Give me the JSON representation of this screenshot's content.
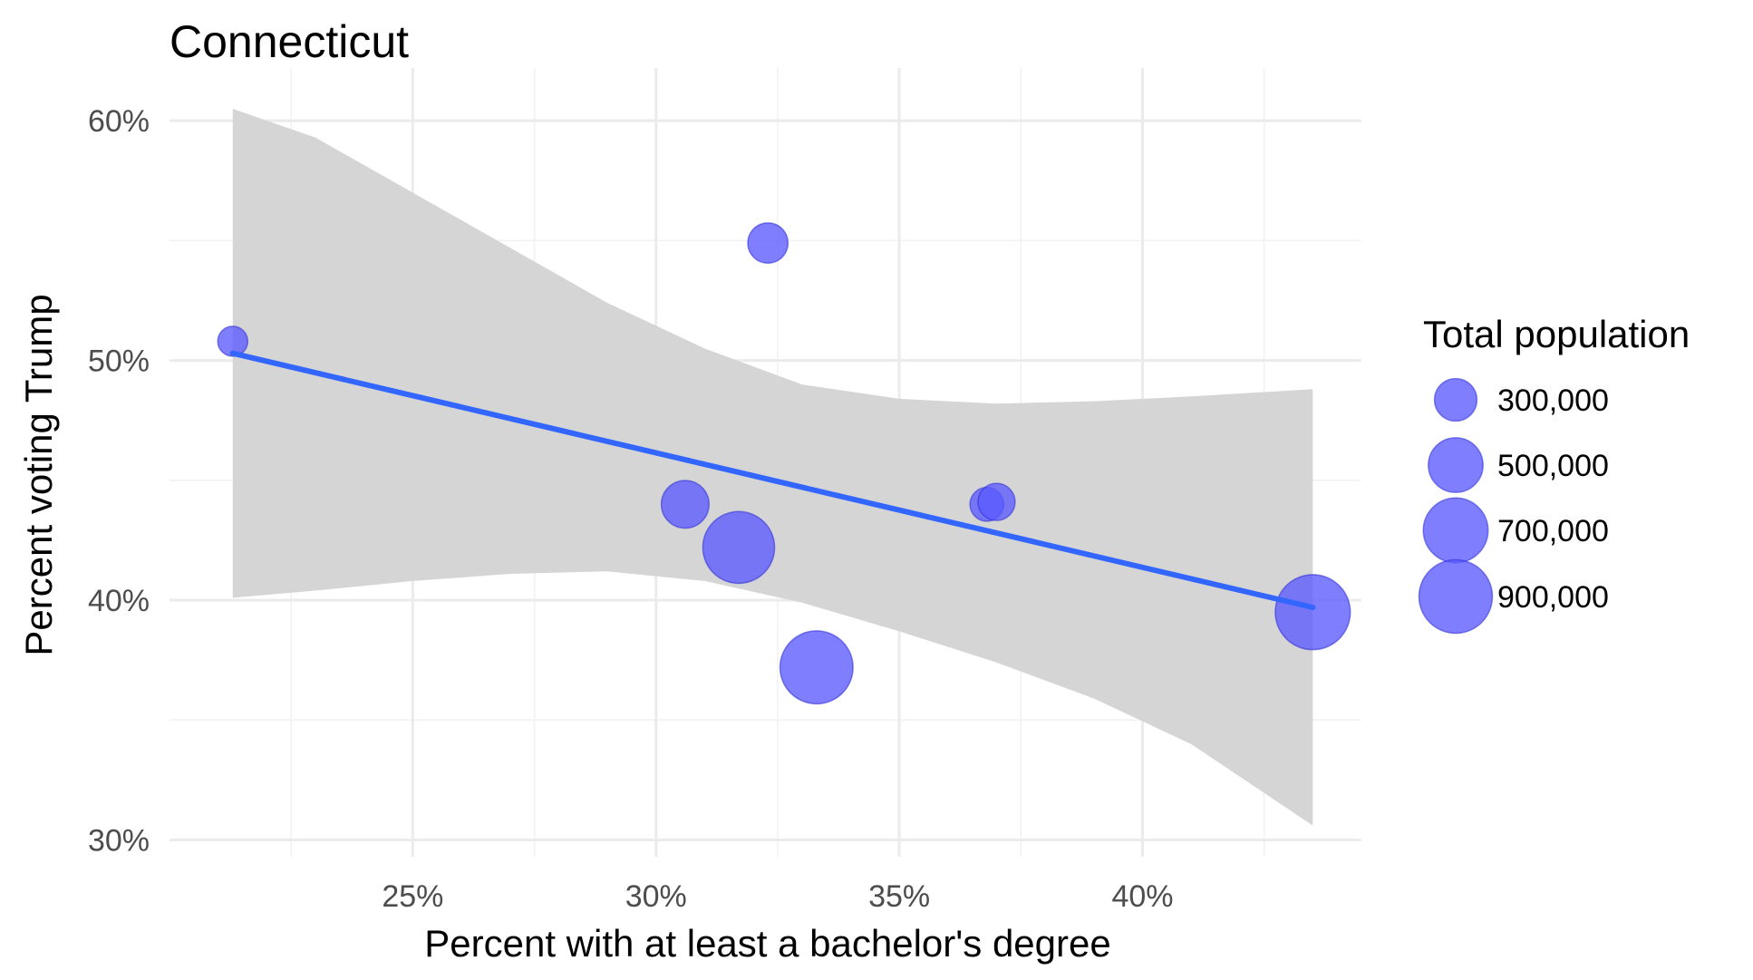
{
  "chart_data": {
    "type": "scatter",
    "title": "Connecticut",
    "xlabel": "Percent with at least a bachelor's degree",
    "ylabel": "Percent voting Trump",
    "xlim": [
      20.0,
      44.5
    ],
    "ylim": [
      29.3,
      62.2
    ],
    "x_ticks": [
      25,
      30,
      35,
      40
    ],
    "x_tick_labels": [
      "25%",
      "30%",
      "35%",
      "40%"
    ],
    "y_ticks": [
      30,
      40,
      50,
      60
    ],
    "y_tick_labels": [
      "30%",
      "40%",
      "50%",
      "60%"
    ],
    "grid": true,
    "points": [
      {
        "x": 21.3,
        "y": 50.8,
        "population": 150000
      },
      {
        "x": 32.3,
        "y": 54.9,
        "population": 270000
      },
      {
        "x": 30.6,
        "y": 44.0,
        "population": 380000
      },
      {
        "x": 31.7,
        "y": 42.2,
        "population": 860000
      },
      {
        "x": 33.3,
        "y": 37.2,
        "population": 890000
      },
      {
        "x": 36.8,
        "y": 44.0,
        "population": 190000
      },
      {
        "x": 37.0,
        "y": 44.1,
        "population": 230000
      },
      {
        "x": 43.5,
        "y": 39.5,
        "population": 940000
      }
    ],
    "trend_line": {
      "x": [
        21.3,
        43.5
      ],
      "y": [
        50.3,
        39.7
      ],
      "color": "#3366ff"
    },
    "confidence_band": {
      "x": [
        21.3,
        23.0,
        25.0,
        27.0,
        29.0,
        31.0,
        33.0,
        35.0,
        37.0,
        39.0,
        41.0,
        43.5
      ],
      "upper": [
        60.5,
        59.3,
        57.0,
        54.7,
        52.4,
        50.5,
        49.0,
        48.4,
        48.2,
        48.3,
        48.5,
        48.8
      ],
      "lower": [
        40.1,
        40.4,
        40.8,
        41.1,
        41.2,
        40.8,
        39.9,
        38.7,
        37.4,
        35.9,
        34.0,
        30.6
      ]
    },
    "point_color": "#5a5aff",
    "band_color": "#d5d5d5",
    "legend": {
      "title": "Total population",
      "position": "right",
      "entries": [
        {
          "label": "300,000",
          "value": 300000
        },
        {
          "label": "500,000",
          "value": 500000
        },
        {
          "label": "700,000",
          "value": 700000
        },
        {
          "label": "900,000",
          "value": 900000
        }
      ]
    }
  }
}
